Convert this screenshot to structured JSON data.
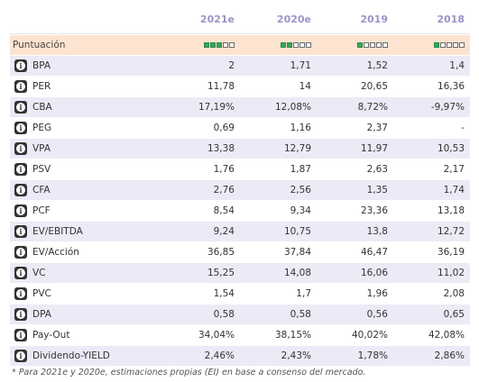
{
  "columns": [
    "2021e",
    "2020e",
    "2019",
    "2018"
  ],
  "score_row": {
    "label": "Puntuación",
    "scores": [
      3,
      2,
      1,
      1
    ],
    "max": 5,
    "on_color": "#3aa55c"
  },
  "rows": [
    {
      "label": "BPA",
      "values": [
        "2",
        "1,71",
        "1,52",
        "1,4"
      ]
    },
    {
      "label": "PER",
      "values": [
        "11,78",
        "14",
        "20,65",
        "16,36"
      ]
    },
    {
      "label": "CBA",
      "values": [
        "17,19%",
        "12,08%",
        "8,72%",
        "-9,97%"
      ]
    },
    {
      "label": "PEG",
      "values": [
        "0,69",
        "1,16",
        "2,37",
        "-"
      ]
    },
    {
      "label": "VPA",
      "values": [
        "13,38",
        "12,79",
        "11,97",
        "10,53"
      ]
    },
    {
      "label": "PSV",
      "values": [
        "1,76",
        "1,87",
        "2,63",
        "2,17"
      ]
    },
    {
      "label": "CFA",
      "values": [
        "2,76",
        "2,56",
        "1,35",
        "1,74"
      ]
    },
    {
      "label": "PCF",
      "values": [
        "8,54",
        "9,34",
        "23,36",
        "13,18"
      ]
    },
    {
      "label": "EV/EBITDA",
      "values": [
        "9,24",
        "10,75",
        "13,8",
        "12,72"
      ]
    },
    {
      "label": "EV/Acción",
      "values": [
        "36,85",
        "37,84",
        "46,47",
        "36,19"
      ]
    },
    {
      "label": "VC",
      "values": [
        "15,25",
        "14,08",
        "16,06",
        "11,02"
      ]
    },
    {
      "label": "PVC",
      "values": [
        "1,54",
        "1,7",
        "1,96",
        "2,08"
      ]
    },
    {
      "label": "DPA",
      "values": [
        "0,58",
        "0,58",
        "0,56",
        "0,65"
      ]
    },
    {
      "label": "Pay-Out",
      "values": [
        "34,04%",
        "38,15%",
        "40,02%",
        "42,08%"
      ]
    },
    {
      "label": "Dividendo-YIELD",
      "values": [
        "2,46%",
        "2,43%",
        "1,78%",
        "2,86%"
      ]
    }
  ],
  "info_icon_glyph": "i",
  "footnote": "* Para 2021e y 2020e, estimaciones propias (EI) en base a consenso del mercado."
}
